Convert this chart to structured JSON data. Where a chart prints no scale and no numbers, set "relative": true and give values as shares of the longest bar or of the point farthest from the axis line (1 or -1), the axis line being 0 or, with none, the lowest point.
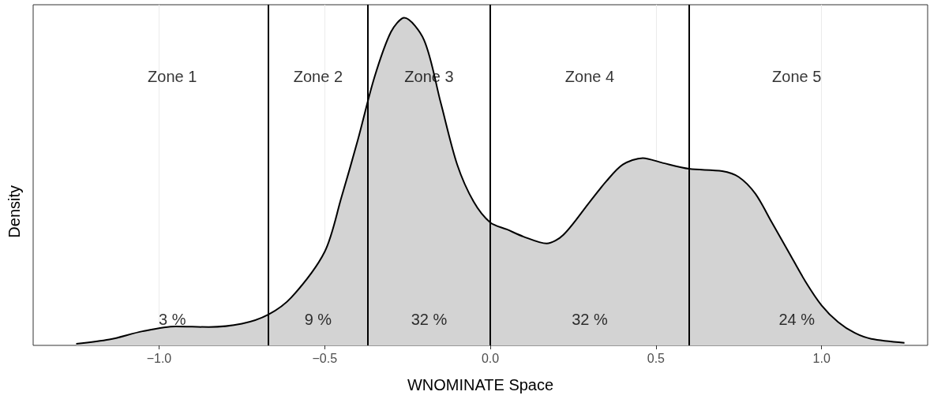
{
  "chart_data": {
    "type": "area",
    "relative": true,
    "xlabel": "WNOMINATE Space",
    "ylabel": "Density",
    "x": [
      -1.25,
      -1.15,
      -1.05,
      -0.95,
      -0.85,
      -0.75,
      -0.67,
      -0.6,
      -0.5,
      -0.45,
      -0.4,
      -0.35,
      -0.3,
      -0.26,
      -0.2,
      -0.15,
      -0.1,
      -0.05,
      0.0,
      0.05,
      0.1,
      0.17,
      0.22,
      0.3,
      0.35,
      0.4,
      0.46,
      0.52,
      0.6,
      0.7,
      0.75,
      0.8,
      0.85,
      0.9,
      0.95,
      1.0,
      1.05,
      1.1,
      1.15,
      1.25
    ],
    "series": [
      {
        "color": "#d3d3d3",
        "values": [
          0.005,
          0.018,
          0.043,
          0.058,
          0.056,
          0.066,
          0.094,
          0.147,
          0.286,
          0.45,
          0.627,
          0.818,
          0.957,
          1.0,
          0.932,
          0.742,
          0.552,
          0.438,
          0.375,
          0.354,
          0.332,
          0.311,
          0.337,
          0.438,
          0.501,
          0.552,
          0.572,
          0.557,
          0.539,
          0.532,
          0.514,
          0.463,
          0.375,
          0.286,
          0.197,
          0.122,
          0.071,
          0.038,
          0.02,
          0.008
        ]
      }
    ],
    "xlim": [
      -1.38,
      1.32
    ],
    "xticks": [
      {
        "value": -1.0,
        "label": "−1.0"
      },
      {
        "value": -0.5,
        "label": "−0.5"
      },
      {
        "value": 0.0,
        "label": "0.0"
      },
      {
        "value": 0.5,
        "label": "0.5"
      },
      {
        "value": 1.0,
        "label": "1.0"
      }
    ],
    "grid": "x",
    "marker": "none",
    "line_style": "solid",
    "ref_lines": [
      {
        "axis": "x",
        "value": -0.67,
        "color": "#000000"
      },
      {
        "axis": "x",
        "value": -0.37,
        "color": "#000000"
      },
      {
        "axis": "x",
        "value": 0.0,
        "color": "#000000"
      },
      {
        "axis": "x",
        "value": 0.6,
        "color": "#000000"
      }
    ],
    "annotations": [
      "Zone 1",
      "Zone 2",
      "Zone 3",
      "Zone 4",
      "Zone 5",
      "3 %",
      "9 %",
      "32 %",
      "32 %",
      "24 %"
    ]
  }
}
